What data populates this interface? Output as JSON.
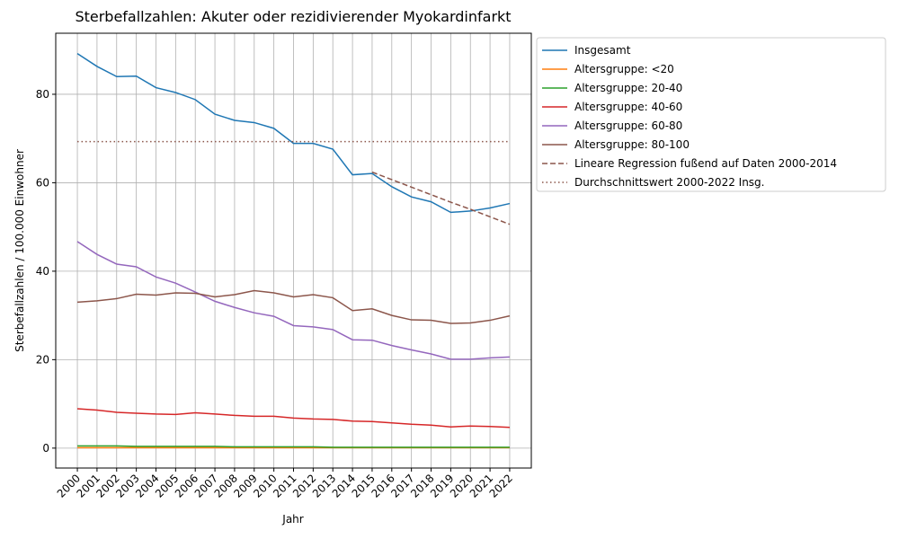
{
  "chart_data": {
    "type": "line",
    "title": "Sterbefallzahlen: Akuter oder rezidivierender Myokardinfarkt",
    "x_label": "Jahr",
    "y_label": "Sterbefallzahlen / 100.000 Einwohner",
    "x": [
      2000,
      2001,
      2002,
      2003,
      2004,
      2005,
      2006,
      2007,
      2008,
      2009,
      2010,
      2011,
      2012,
      2013,
      2014,
      2015,
      2016,
      2017,
      2018,
      2019,
      2020,
      2021,
      2022
    ],
    "xlim": [
      1998.9,
      2023.1
    ],
    "xticks": [
      2000,
      2001,
      2002,
      2003,
      2004,
      2005,
      2006,
      2007,
      2008,
      2009,
      2010,
      2011,
      2012,
      2013,
      2014,
      2015,
      2016,
      2017,
      2018,
      2019,
      2020,
      2021,
      2022
    ],
    "ylim": [
      -4.5,
      93.8
    ],
    "yticks": [
      0,
      20,
      40,
      60,
      80
    ],
    "grid": true,
    "legend": "outside-upper-right",
    "series": [
      {
        "name": "Insgesamt",
        "color": "#1f77b4",
        "linestyle": "solid",
        "values": [
          89.2,
          86.3,
          84.0,
          84.1,
          81.5,
          80.4,
          78.8,
          75.5,
          74.1,
          73.6,
          72.3,
          68.9,
          68.9,
          67.6,
          61.8,
          62.1,
          59.1,
          56.8,
          55.7,
          53.3,
          53.6,
          54.3,
          55.3
        ]
      },
      {
        "name": "Altersgruppe: <20",
        "color": "#ff7f0e",
        "linestyle": "solid",
        "values": [
          0.1,
          0.1,
          0.1,
          0.1,
          0.1,
          0.1,
          0.1,
          0.1,
          0.1,
          0.1,
          0.1,
          0.1,
          0.1,
          0.1,
          0.1,
          0.1,
          0.1,
          0.1,
          0.1,
          0.1,
          0.1,
          0.1,
          0.1
        ]
      },
      {
        "name": "Altersgruppe: 20-40",
        "color": "#2ca02c",
        "linestyle": "solid",
        "values": [
          0.5,
          0.5,
          0.5,
          0.4,
          0.4,
          0.4,
          0.4,
          0.4,
          0.3,
          0.3,
          0.3,
          0.3,
          0.3,
          0.2,
          0.2,
          0.2,
          0.2,
          0.2,
          0.2,
          0.2,
          0.2,
          0.2,
          0.2
        ]
      },
      {
        "name": "Altersgruppe: 40-60",
        "color": "#d62728",
        "linestyle": "solid",
        "values": [
          8.9,
          8.6,
          8.1,
          7.9,
          7.7,
          7.6,
          8.0,
          7.7,
          7.4,
          7.2,
          7.2,
          6.8,
          6.6,
          6.5,
          6.1,
          6.0,
          5.7,
          5.4,
          5.2,
          4.8,
          5.0,
          4.9,
          4.7
        ]
      },
      {
        "name": "Altersgruppe: 60-80",
        "color": "#9467bd",
        "linestyle": "solid",
        "values": [
          46.7,
          43.8,
          41.6,
          41.0,
          38.7,
          37.3,
          35.3,
          33.2,
          31.8,
          30.6,
          29.8,
          27.7,
          27.4,
          26.8,
          24.5,
          24.4,
          23.2,
          22.2,
          21.3,
          20.1,
          20.1,
          20.4,
          20.6
        ]
      },
      {
        "name": "Altersgruppe: 80-100",
        "color": "#8c564b",
        "linestyle": "solid",
        "values": [
          33.0,
          33.3,
          33.8,
          34.8,
          34.6,
          35.1,
          35.0,
          34.2,
          34.7,
          35.6,
          35.1,
          34.2,
          34.7,
          34.0,
          31.1,
          31.5,
          30.0,
          29.0,
          28.9,
          28.2,
          28.3,
          28.9,
          29.9
        ]
      },
      {
        "name": "Lineare Regression fußend auf Daten 2000-2014",
        "color": "#8c564b",
        "linestyle": "dashed",
        "values": [
          null,
          null,
          null,
          null,
          null,
          null,
          null,
          null,
          null,
          null,
          null,
          null,
          null,
          null,
          null,
          62.4,
          60.7,
          59.0,
          57.3,
          55.6,
          54.0,
          52.3,
          50.6
        ]
      },
      {
        "name": "Durchschnittswert 2000-2022 Insg.",
        "color": "#8c564b",
        "linestyle": "dotted",
        "values": [
          69.3,
          69.3,
          69.3,
          69.3,
          69.3,
          69.3,
          69.3,
          69.3,
          69.3,
          69.3,
          69.3,
          69.3,
          69.3,
          69.3,
          69.3,
          69.3,
          69.3,
          69.3,
          69.3,
          69.3,
          69.3,
          69.3,
          69.3
        ]
      }
    ]
  }
}
